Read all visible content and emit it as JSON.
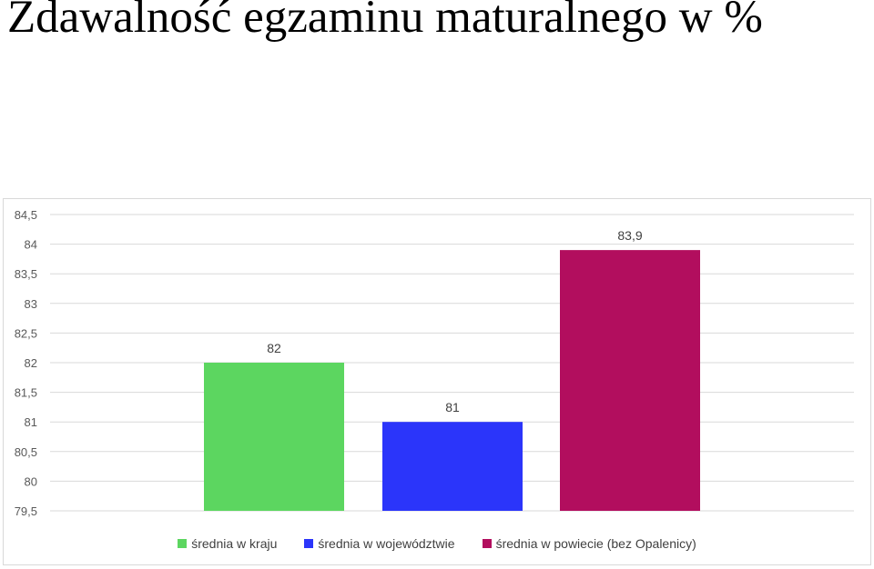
{
  "title": "Zdawalność egzaminu maturalnego w %",
  "chart_data": {
    "type": "bar",
    "categories": [
      "średnia w kraju",
      "średnia w województwie",
      "średnia w powiecie (bez Opalenicy)"
    ],
    "values": [
      82,
      81,
      83.9
    ],
    "value_labels": [
      "82",
      "81",
      "83,9"
    ],
    "colors": [
      "#5cd660",
      "#2b35fa",
      "#b20e5e"
    ],
    "ylim": [
      79.5,
      84.5
    ],
    "yticks": [
      79.5,
      80,
      80.5,
      81,
      81.5,
      82,
      82.5,
      83,
      83.5,
      84,
      84.5
    ],
    "ytick_labels": [
      "79,5",
      "80",
      "80,5",
      "81",
      "81,5",
      "82",
      "82,5",
      "83",
      "83,5",
      "84",
      "84,5"
    ],
    "grid": true,
    "legend_position": "bottom",
    "xlabel": "",
    "ylabel": ""
  }
}
